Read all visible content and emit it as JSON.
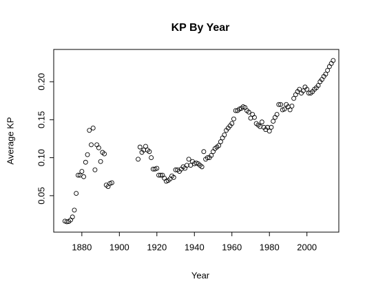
{
  "chart_data": {
    "type": "scatter",
    "title": "KP By Year",
    "x_label": "Year",
    "y_label": "Average KP",
    "x": [
      1871,
      1872,
      1873,
      1874,
      1875,
      1876,
      1877,
      1878,
      1879,
      1880,
      1881,
      1882,
      1883,
      1884,
      1885,
      1886,
      1887,
      1888,
      1889,
      1890,
      1891,
      1892,
      1893,
      1894,
      1895,
      1896,
      1910,
      1911,
      1912,
      1913,
      1914,
      1915,
      1916,
      1917,
      1918,
      1919,
      1920,
      1921,
      1922,
      1923,
      1924,
      1925,
      1926,
      1927,
      1928,
      1929,
      1930,
      1931,
      1932,
      1933,
      1934,
      1935,
      1936,
      1937,
      1938,
      1939,
      1940,
      1941,
      1942,
      1943,
      1944,
      1945,
      1946,
      1947,
      1948,
      1949,
      1950,
      1951,
      1952,
      1953,
      1954,
      1955,
      1956,
      1957,
      1958,
      1959,
      1960,
      1961,
      1962,
      1963,
      1964,
      1965,
      1966,
      1967,
      1968,
      1969,
      1970,
      1971,
      1972,
      1973,
      1974,
      1975,
      1976,
      1977,
      1978,
      1979,
      1980,
      1981,
      1982,
      1983,
      1984,
      1985,
      1986,
      1987,
      1988,
      1989,
      1990,
      1991,
      1992,
      1993,
      1994,
      1995,
      1996,
      1997,
      1998,
      1999,
      2000,
      2001,
      2002,
      2003,
      2004,
      2005,
      2006,
      2007,
      2008,
      2009,
      2010,
      2011,
      2012,
      2013,
      2014
    ],
    "values": [
      0.0165,
      0.0156,
      0.016,
      0.018,
      0.022,
      0.031,
      0.053,
      0.077,
      0.077,
      0.082,
      0.075,
      0.094,
      0.104,
      0.136,
      0.117,
      0.139,
      0.084,
      0.117,
      0.113,
      0.095,
      0.107,
      0.105,
      0.064,
      0.062,
      0.066,
      0.067,
      0.098,
      0.114,
      0.107,
      0.11,
      0.115,
      0.11,
      0.108,
      0.1,
      0.085,
      0.085,
      0.086,
      0.077,
      0.077,
      0.077,
      0.073,
      0.069,
      0.07,
      0.072,
      0.076,
      0.074,
      0.084,
      0.084,
      0.082,
      0.085,
      0.088,
      0.086,
      0.09,
      0.098,
      0.09,
      0.095,
      0.092,
      0.093,
      0.092,
      0.09,
      0.088,
      0.108,
      0.098,
      0.1,
      0.1,
      0.103,
      0.108,
      0.112,
      0.114,
      0.116,
      0.121,
      0.126,
      0.13,
      0.136,
      0.139,
      0.142,
      0.145,
      0.151,
      0.162,
      0.162,
      0.164,
      0.165,
      0.167,
      0.166,
      0.162,
      0.16,
      0.152,
      0.157,
      0.153,
      0.145,
      0.143,
      0.141,
      0.147,
      0.14,
      0.137,
      0.14,
      0.135,
      0.14,
      0.148,
      0.153,
      0.157,
      0.17,
      0.17,
      0.163,
      0.164,
      0.17,
      0.167,
      0.163,
      0.168,
      0.178,
      0.183,
      0.187,
      0.19,
      0.185,
      0.188,
      0.193,
      0.19,
      0.185,
      0.185,
      0.187,
      0.19,
      0.192,
      0.195,
      0.2,
      0.203,
      0.207,
      0.21,
      0.215,
      0.22,
      0.224,
      0.228
    ],
    "xlim": [
      1865,
      2017
    ],
    "ylim": [
      0.002,
      0.2425
    ],
    "xticks": [
      1880,
      1900,
      1920,
      1940,
      1960,
      1980,
      2000
    ],
    "yticks": [
      0.05,
      {
        "value": 0.1,
        "label": "0.10"
      },
      0.15,
      {
        "value": 0.2,
        "label": "0.20"
      }
    ]
  }
}
